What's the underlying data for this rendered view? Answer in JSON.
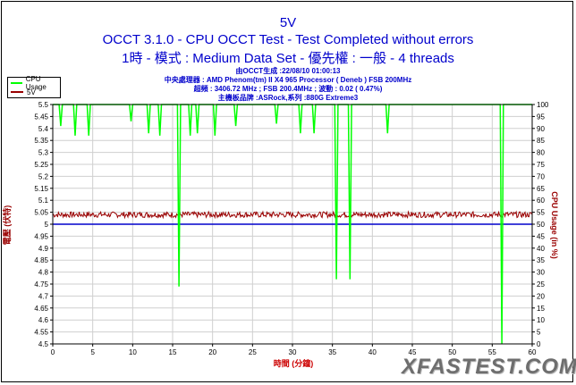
{
  "chart_data": {
    "type": "line",
    "title": "5V",
    "subtitle": "OCCT 3.1.0 - CPU OCCT Test - Test Completed without errors",
    "subtitle2": "1時 - 模式 : Medium Data Set - 優先權 : 一般 - 4 threads",
    "info_lines": [
      "由OCCT生成 :22/08/10 01:00:13",
      "中央處理器 : AMD Phenom(tm) II X4 965 Processor ( Deneb ) FSB 200MHz",
      "超頻 : 3406.72 MHz ; FSB 200.4MHz ; 波動 : 0.02 ( 0.47%)",
      "主機板品牌 :ASRock,系列 :880G Extreme3"
    ],
    "xlabel": "時間 (分鐘)",
    "ylabel_left": "電壓 (伏特)",
    "ylabel_right": "CPU Usage (in %)",
    "x_ticks": [
      0,
      5,
      10,
      15,
      20,
      25,
      30,
      35,
      40,
      45,
      50,
      55,
      60
    ],
    "y_left_ticks": [
      "4.5",
      "4.55",
      "4.6",
      "4.65",
      "4.7",
      "4.75",
      "4.8",
      "4.85",
      "4.9",
      "4.95",
      "5",
      "5.05",
      "5.1",
      "5.15",
      "5.2",
      "5.25",
      "5.3",
      "5.35",
      "5.4",
      "5.45",
      "5.5"
    ],
    "y_right_ticks": [
      "0",
      "5",
      "10",
      "15",
      "20",
      "25",
      "30",
      "35",
      "40",
      "45",
      "50",
      "55",
      "60",
      "65",
      "70",
      "75",
      "80",
      "85",
      "90",
      "95",
      "100"
    ],
    "xlim": [
      0,
      60
    ],
    "ylim_left": [
      4.5,
      5.5
    ],
    "ylim_right": [
      0,
      100
    ],
    "grid": true,
    "legend_position": "top-left",
    "series": [
      {
        "name": "CPU Usage",
        "axis": "right",
        "color": "#00ff00",
        "x": [
          0,
          0.8,
          1.0,
          1.2,
          2.6,
          2.8,
          3.0,
          4.3,
          4.5,
          4.7,
          9.6,
          9.8,
          10.0,
          11.8,
          12.0,
          12.2,
          13.2,
          13.4,
          13.6,
          15.6,
          15.8,
          16.0,
          17.0,
          17.2,
          17.4,
          17.9,
          18.1,
          18.3,
          20.1,
          20.3,
          20.5,
          22.7,
          22.9,
          23.1,
          27.8,
          28.0,
          28.2,
          30.8,
          31.0,
          31.2,
          32.5,
          32.7,
          32.9,
          35.3,
          35.5,
          35.7,
          37.0,
          37.2,
          37.4,
          41.7,
          41.9,
          42.1,
          56.0,
          56.2,
          56.4,
          60
        ],
        "y": [
          100,
          100,
          91,
          100,
          100,
          87,
          100,
          100,
          87,
          100,
          100,
          93,
          100,
          100,
          88,
          100,
          100,
          87,
          100,
          100,
          24,
          100,
          100,
          87,
          100,
          100,
          88,
          100,
          100,
          87,
          100,
          100,
          91,
          100,
          100,
          92,
          100,
          100,
          88,
          100,
          100,
          88,
          100,
          100,
          27,
          100,
          100,
          27,
          100,
          100,
          88,
          100,
          100,
          0,
          100,
          100
        ]
      },
      {
        "name": "5V",
        "axis": "left",
        "color": "#990000",
        "baseline": 5.04,
        "noise": 0.012
      },
      {
        "name": "",
        "axis": "left",
        "color": "#0000cc",
        "x": [
          0,
          60
        ],
        "y": [
          5.0,
          5.0
        ]
      }
    ]
  },
  "watermark": "XFASTEST.COM"
}
